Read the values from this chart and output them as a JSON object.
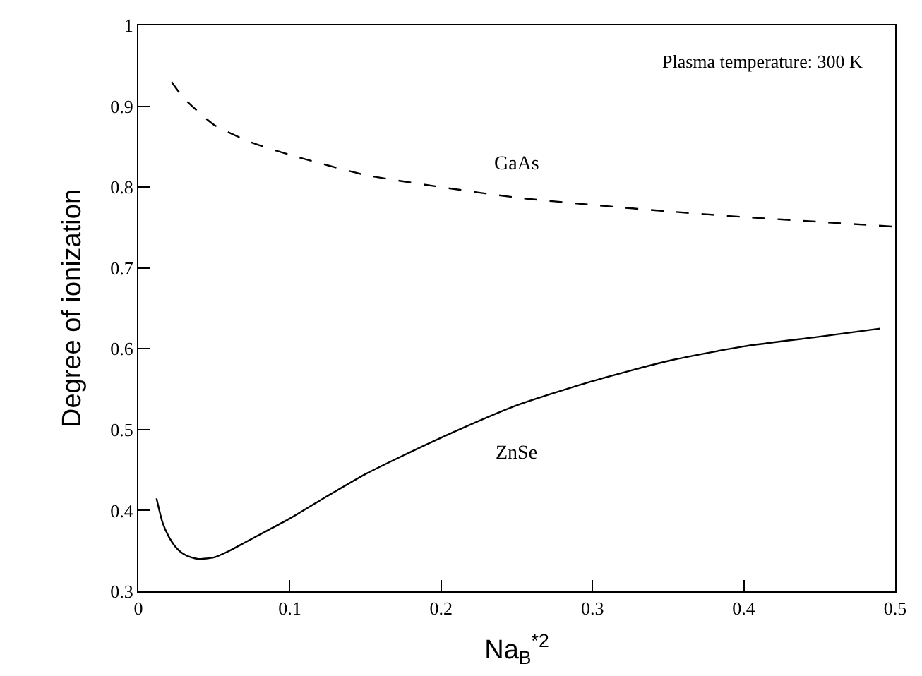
{
  "chart_data": {
    "type": "line",
    "xlabel": "Na$_{B}$$^{*2}$",
    "ylabel": "Degree of ionization",
    "annotations": [
      "Plasma temperature: 300 K"
    ],
    "xlim": [
      0,
      0.5
    ],
    "ylim": [
      0.3,
      1
    ],
    "xticks": [
      0,
      0.1,
      0.2,
      0.3,
      0.4,
      0.5
    ],
    "yticks": [
      0.3,
      0.4,
      0.5,
      0.6,
      0.7,
      0.8,
      0.9,
      1
    ],
    "legend": false,
    "marker": "none",
    "series": [
      {
        "name": "GaAs",
        "color": "#000000",
        "line_style": "dashed",
        "x": [
          0.022,
          0.03,
          0.05,
          0.075,
          0.1,
          0.15,
          0.2,
          0.25,
          0.3,
          0.35,
          0.4,
          0.45,
          0.5
        ],
        "values": [
          0.93,
          0.91,
          0.877,
          0.855,
          0.84,
          0.815,
          0.8,
          0.787,
          0.778,
          0.77,
          0.763,
          0.757,
          0.751
        ]
      },
      {
        "name": "ZnSe",
        "color": "#000000",
        "line_style": "solid",
        "x": [
          0.012,
          0.016,
          0.02,
          0.025,
          0.03,
          0.035,
          0.04,
          0.05,
          0.06,
          0.07,
          0.085,
          0.1,
          0.125,
          0.15,
          0.175,
          0.2,
          0.25,
          0.3,
          0.35,
          0.4,
          0.45,
          0.49
        ],
        "values": [
          0.415,
          0.385,
          0.368,
          0.354,
          0.346,
          0.342,
          0.34,
          0.342,
          0.35,
          0.36,
          0.375,
          0.39,
          0.418,
          0.445,
          0.468,
          0.49,
          0.53,
          0.56,
          0.585,
          0.603,
          0.615,
          0.625
        ]
      }
    ]
  }
}
